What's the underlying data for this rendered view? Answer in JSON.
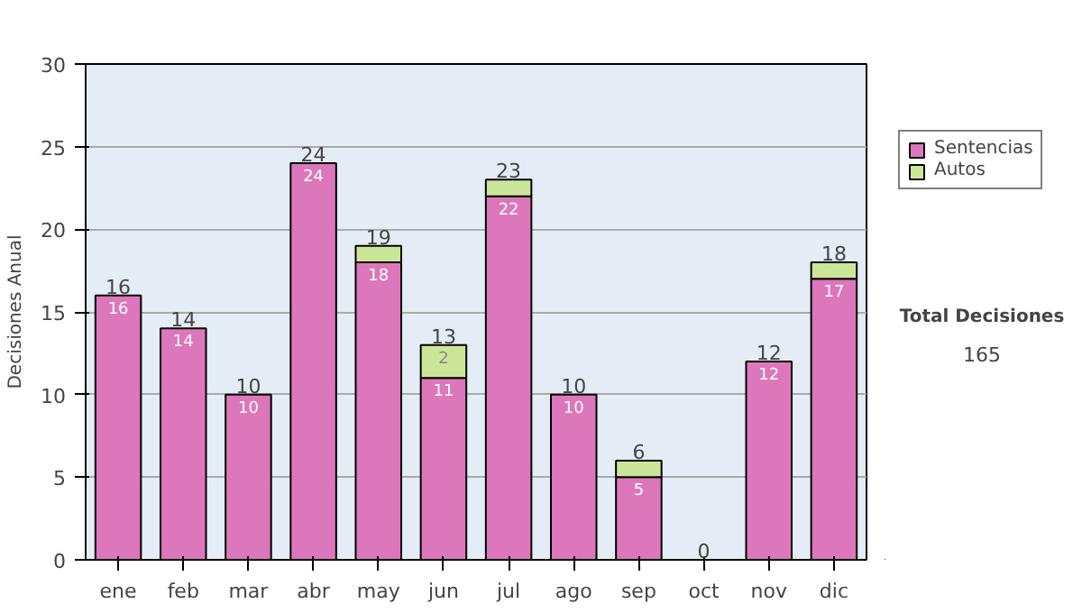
{
  "chart_data": {
    "type": "bar",
    "stacked": true,
    "ylabel": "Decisiones Anual",
    "categories": [
      "ene",
      "feb",
      "mar",
      "abr",
      "may",
      "jun",
      "jul",
      "ago",
      "sep",
      "oct",
      "nov",
      "dic"
    ],
    "series": [
      {
        "name": "Sentencias",
        "color": "#dd77bb",
        "values": [
          16,
          14,
          10,
          24,
          18,
          11,
          22,
          10,
          5,
          0,
          12,
          17
        ],
        "value_labels": [
          "16",
          "14",
          "10",
          "24",
          "18",
          "11",
          "22",
          "10",
          "5",
          null,
          "12",
          "17"
        ]
      },
      {
        "name": "Autos",
        "color": "#cce699",
        "values": [
          0,
          0,
          0,
          0,
          1,
          2,
          1,
          0,
          1,
          0,
          0,
          1
        ],
        "value_labels": [
          null,
          null,
          null,
          null,
          null,
          "2",
          null,
          null,
          null,
          null,
          null,
          null
        ]
      }
    ],
    "totals": [
      "16",
      "14",
      "10",
      "24",
      "19",
      "13",
      "23",
      "10",
      "6",
      "0",
      "12",
      "18"
    ],
    "ylim": [
      0,
      30
    ],
    "yticks": [
      0,
      5,
      10,
      15,
      20,
      25,
      30
    ],
    "grid": "y",
    "legend": "right",
    "annotations": [
      "Total Decisiones",
      "165"
    ]
  }
}
